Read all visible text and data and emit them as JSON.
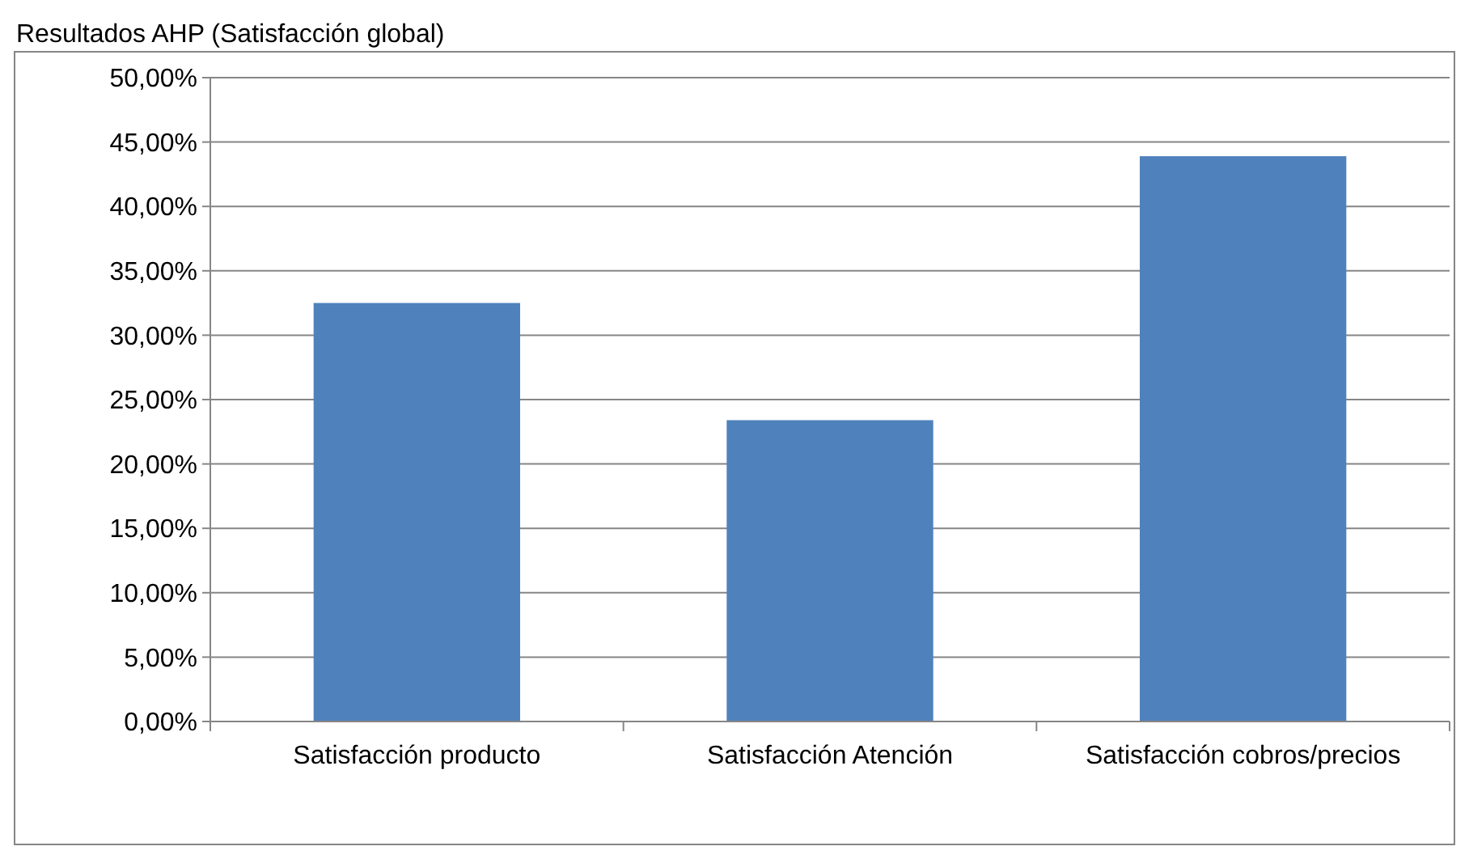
{
  "chart_data": {
    "type": "bar",
    "title": "Resultados AHP  (Satisfacción global)",
    "categories": [
      "Satisfacción producto",
      "Satisfacción Atención",
      "Satisfacción cobros/precios"
    ],
    "values": [
      32.5,
      23.4,
      43.9
    ],
    "color": "#4f81bd",
    "ylim": [
      0,
      50
    ],
    "yticks": [
      {
        "value": 0,
        "label": "0,00%"
      },
      {
        "value": 5,
        "label": "5,00%"
      },
      {
        "value": 10,
        "label": "10,00%"
      },
      {
        "value": 15,
        "label": "15,00%"
      },
      {
        "value": 20,
        "label": "20,00%"
      },
      {
        "value": 25,
        "label": "25,00%"
      },
      {
        "value": 30,
        "label": "30,00%"
      },
      {
        "value": 35,
        "label": "35,00%"
      },
      {
        "value": 40,
        "label": "40,00%"
      },
      {
        "value": 45,
        "label": "45,00%"
      },
      {
        "value": 50,
        "label": "50,00%"
      }
    ],
    "grid": "y"
  }
}
